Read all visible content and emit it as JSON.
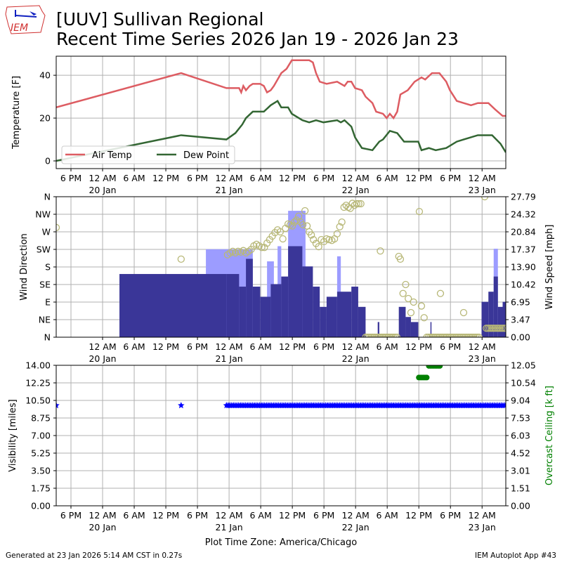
{
  "logo_text": "IEM",
  "title_line1": "[UUV] Sullivan Regional",
  "title_line2": "Recent Time Series 2026 Jan 19 - 2026 Jan 23",
  "footer_left": "Generated at 23 Jan 2026 5:14 AM CST in 0.27s",
  "footer_right": "IEM Autoplot App #43",
  "chart_data": [
    {
      "type": "line",
      "name": "temperature",
      "x_units": "hours since 2026-01-19 00:00 America/Chicago",
      "xlim": [
        15.2,
        100.5
      ],
      "ylim": [
        -3.6,
        48.9
      ],
      "ylabel": "Temperature [F]",
      "yticks": [
        0,
        20,
        40
      ],
      "grid": true,
      "legend": {
        "placement": "lower-left",
        "entries": [
          "Air Temp",
          "Dew Point"
        ]
      },
      "colors": {
        "Air Temp": "#dd5c62",
        "Dew Point": "#336633"
      },
      "series": [
        {
          "name": "Air Temp",
          "points": [
            [
              15.2,
              25
            ],
            [
              38.9,
              41
            ],
            [
              47.5,
              34
            ],
            [
              49.9,
              34
            ],
            [
              50.3,
              32
            ],
            [
              50.7,
              35
            ],
            [
              51.2,
              33
            ],
            [
              51.9,
              35
            ],
            [
              52.5,
              36
            ],
            [
              53.9,
              36
            ],
            [
              54.6,
              35
            ],
            [
              55.2,
              32
            ],
            [
              55.9,
              33
            ],
            [
              56.5,
              35
            ],
            [
              57.9,
              41
            ],
            [
              58.9,
              43
            ],
            [
              59.9,
              47
            ],
            [
              63.2,
              47
            ],
            [
              63.9,
              46
            ],
            [
              64.5,
              41
            ],
            [
              65.2,
              37
            ],
            [
              66.5,
              36
            ],
            [
              68.5,
              37
            ],
            [
              69.9,
              35
            ],
            [
              70.5,
              37
            ],
            [
              71.2,
              37
            ],
            [
              71.9,
              34
            ],
            [
              73.2,
              33
            ],
            [
              73.9,
              30
            ],
            [
              75.2,
              27
            ],
            [
              75.9,
              23
            ],
            [
              77.2,
              22
            ],
            [
              77.9,
              20
            ],
            [
              78.5,
              22
            ],
            [
              79.2,
              20
            ],
            [
              79.9,
              23
            ],
            [
              80.5,
              31
            ],
            [
              81.9,
              33
            ],
            [
              83.2,
              37
            ],
            [
              84.5,
              39
            ],
            [
              85.2,
              38
            ],
            [
              86.5,
              41
            ],
            [
              87.9,
              41
            ],
            [
              89.2,
              37
            ],
            [
              89.9,
              33
            ],
            [
              91.2,
              28
            ],
            [
              92.5,
              27
            ],
            [
              93.9,
              26
            ],
            [
              95.2,
              27
            ],
            [
              97.2,
              27
            ],
            [
              98.5,
              24
            ],
            [
              99.9,
              21
            ],
            [
              100.5,
              21
            ]
          ]
        },
        {
          "name": "Dew Point",
          "points": [
            [
              15.2,
              0
            ],
            [
              38.9,
              12
            ],
            [
              47.5,
              10
            ],
            [
              49.2,
              13
            ],
            [
              50.5,
              17
            ],
            [
              51.2,
              20
            ],
            [
              52.5,
              23
            ],
            [
              54.6,
              23
            ],
            [
              55.9,
              26
            ],
            [
              57.2,
              28
            ],
            [
              57.9,
              25
            ],
            [
              59.2,
              25
            ],
            [
              59.9,
              22
            ],
            [
              61.9,
              19
            ],
            [
              63.2,
              18
            ],
            [
              64.5,
              19
            ],
            [
              65.9,
              18
            ],
            [
              68.5,
              19
            ],
            [
              69.2,
              18
            ],
            [
              69.9,
              19
            ],
            [
              71.2,
              16
            ],
            [
              71.9,
              11
            ],
            [
              73.2,
              6
            ],
            [
              75.2,
              5
            ],
            [
              76.5,
              9
            ],
            [
              77.2,
              10
            ],
            [
              78.5,
              14
            ],
            [
              79.9,
              13
            ],
            [
              81.2,
              9
            ],
            [
              83.9,
              9
            ],
            [
              84.5,
              5
            ],
            [
              85.9,
              6
            ],
            [
              87.2,
              5
            ],
            [
              89.2,
              6
            ],
            [
              91.2,
              9
            ],
            [
              92.5,
              10
            ],
            [
              95.2,
              12
            ],
            [
              97.9,
              12
            ],
            [
              99.5,
              8
            ],
            [
              100.5,
              4
            ]
          ]
        }
      ]
    },
    {
      "type": "bar+scatter",
      "name": "wind",
      "xlim": [
        15.2,
        100.5
      ],
      "ylabel_left": "Wind Direction",
      "ylabel_right": "Wind Speed [mph]",
      "direction_ylim": [
        0,
        360
      ],
      "direction_ticks": [
        "N",
        "NE",
        "E",
        "SE",
        "S",
        "SW",
        "W",
        "NW",
        "N"
      ],
      "speed_ylim": [
        0,
        27.79
      ],
      "speed_ticks": [
        "0.00",
        "3.47",
        "6.95",
        "10.42",
        "13.90",
        "17.37",
        "20.84",
        "24.32",
        "27.79"
      ],
      "colors": {
        "speed": "#3a3698",
        "gust": "#9c9cff",
        "direction": "#b8b878"
      },
      "speed_segments": [
        [
          27.2,
          47.5,
          12.5
        ],
        [
          47.5,
          49.9,
          12.5
        ],
        [
          49.9,
          51.2,
          10.0
        ],
        [
          51.2,
          52.5,
          15.5
        ],
        [
          52.5,
          53.9,
          10.0
        ],
        [
          53.9,
          55.9,
          8.0
        ],
        [
          55.9,
          57.9,
          10.5
        ],
        [
          57.9,
          59.2,
          12
        ],
        [
          59.2,
          61.9,
          18
        ],
        [
          61.9,
          63.9,
          14
        ],
        [
          63.9,
          65.2,
          10
        ],
        [
          65.2,
          66.5,
          6
        ],
        [
          66.5,
          68.5,
          8
        ],
        [
          68.5,
          71.2,
          9
        ],
        [
          71.2,
          72.5,
          10
        ],
        [
          72.5,
          73.9,
          6
        ],
        [
          76.2,
          76.5,
          3
        ],
        [
          80.2,
          81.5,
          6
        ],
        [
          81.5,
          82.5,
          4
        ],
        [
          82.5,
          83.9,
          3
        ],
        [
          86.2,
          86.4,
          3
        ],
        [
          95.9,
          97.2,
          7
        ],
        [
          97.2,
          98.2,
          9
        ],
        [
          98.2,
          99.0,
          12
        ],
        [
          99.0,
          99.9,
          6
        ],
        [
          99.9,
          100.5,
          7
        ]
      ],
      "gust_segments": [
        [
          43.6,
          52.5,
          17.4
        ],
        [
          55.2,
          56.5,
          15
        ],
        [
          57.2,
          57.9,
          18
        ],
        [
          59.2,
          62.5,
          25
        ],
        [
          68.5,
          69.2,
          16
        ],
        [
          98.2,
          99.0,
          17.5
        ]
      ],
      "direction_points": [
        [
          15.2,
          281
        ],
        [
          38.9,
          200
        ],
        [
          47.7,
          211
        ],
        [
          48.2,
          216
        ],
        [
          48.7,
          220
        ],
        [
          49.2,
          216
        ],
        [
          49.7,
          220
        ],
        [
          50.2,
          218
        ],
        [
          50.7,
          222
        ],
        [
          51.2,
          216
        ],
        [
          51.7,
          220
        ],
        [
          52.2,
          225
        ],
        [
          52.7,
          234
        ],
        [
          53.2,
          238
        ],
        [
          53.7,
          234
        ],
        [
          54.2,
          230
        ],
        [
          54.7,
          230
        ],
        [
          55.2,
          241
        ],
        [
          55.7,
          250
        ],
        [
          56.2,
          259
        ],
        [
          56.7,
          268
        ],
        [
          57.2,
          275
        ],
        [
          57.7,
          270
        ],
        [
          58.2,
          252
        ],
        [
          58.7,
          279
        ],
        [
          59.2,
          290
        ],
        [
          59.6,
          288
        ],
        [
          60.0,
          285
        ],
        [
          60.4,
          295
        ],
        [
          60.8,
          300
        ],
        [
          61.2,
          310
        ],
        [
          61.6,
          295
        ],
        [
          62.0,
          288
        ],
        [
          62.4,
          324
        ],
        [
          62.8,
          285
        ],
        [
          63.2,
          270
        ],
        [
          63.6,
          262
        ],
        [
          64.0,
          250
        ],
        [
          64.5,
          240
        ],
        [
          65.0,
          232
        ],
        [
          65.5,
          250
        ],
        [
          66.0,
          245
        ],
        [
          66.5,
          252
        ],
        [
          67.0,
          250
        ],
        [
          67.5,
          248
        ],
        [
          68.0,
          252
        ],
        [
          68.5,
          265
        ],
        [
          69.0,
          283
        ],
        [
          69.4,
          295
        ],
        [
          69.8,
          333
        ],
        [
          70.2,
          338
        ],
        [
          70.6,
          333
        ],
        [
          71.0,
          330
        ],
        [
          71.4,
          343
        ],
        [
          71.8,
          338
        ],
        [
          72.2,
          342
        ],
        [
          72.6,
          342
        ],
        [
          73.0,
          342
        ],
        [
          76.7,
          221
        ],
        [
          80.2,
          207
        ],
        [
          80.5,
          200
        ],
        [
          81.0,
          112
        ],
        [
          81.5,
          135
        ],
        [
          82.0,
          99
        ],
        [
          82.5,
          63
        ],
        [
          83.0,
          90
        ],
        [
          84.1,
          322
        ],
        [
          84.5,
          80
        ],
        [
          85.0,
          50
        ],
        [
          88.1,
          112
        ],
        [
          92.5,
          63
        ],
        [
          96.5,
          360
        ]
      ],
      "calm_ranges": [
        [
          73.9,
          80.0,
          0
        ],
        [
          85.5,
          95.6,
          0
        ],
        [
          96.8,
          100.5,
          23
        ]
      ]
    },
    {
      "type": "scatter",
      "name": "visibility-ceiling",
      "xlim": [
        15.2,
        100.5
      ],
      "ylabel_left": "Visibility [miles]",
      "ylabel_right": "Overcast Ceiling [k ft]",
      "vis_ylim": [
        0,
        14
      ],
      "vis_ticks": [
        "0.00",
        "1.75",
        "3.50",
        "5.25",
        "7.00",
        "8.75",
        "10.50",
        "12.25",
        "14.00"
      ],
      "ceiling_ylim": [
        0,
        12.05
      ],
      "ceiling_ticks": [
        "0.00",
        "1.51",
        "3.01",
        "4.52",
        "6.03",
        "7.53",
        "9.04",
        "10.54",
        "12.05"
      ],
      "colors": {
        "visibility": "#0000ff",
        "ceiling": "#008000"
      },
      "visibility_points": [
        [
          15.2,
          10
        ],
        [
          38.9,
          10
        ]
      ],
      "visibility_regular": {
        "start": 47.5,
        "end": 100.5,
        "step_hours": 0.33,
        "value": 10
      },
      "ceiling_points": [
        [
          84.0,
          11.0
        ],
        [
          84.3,
          11.0
        ],
        [
          84.6,
          11.0
        ],
        [
          84.9,
          11.0
        ],
        [
          85.2,
          11.0
        ],
        [
          85.5,
          11.0
        ],
        [
          85.9,
          12.0
        ],
        [
          86.2,
          12.0
        ],
        [
          86.5,
          12.0
        ],
        [
          86.8,
          12.0
        ],
        [
          87.1,
          12.0
        ],
        [
          87.4,
          12.0
        ],
        [
          87.7,
          12.0
        ],
        [
          88.0,
          12.0
        ]
      ]
    }
  ],
  "time_axis": {
    "ticks_hours": [
      18,
      24,
      30,
      36,
      42,
      48,
      54,
      60,
      66,
      72,
      78,
      84,
      90,
      96
    ],
    "tick_labels": [
      "6 PM",
      "12 AM",
      "6 AM",
      "12 PM",
      "6 PM",
      "12 AM",
      "6 AM",
      "12 PM",
      "6 PM",
      "12 AM",
      "6 AM",
      "12 PM",
      "6 PM",
      "12 AM"
    ],
    "date_labels": [
      [
        24,
        "20 Jan"
      ],
      [
        48,
        "21 Jan"
      ],
      [
        72,
        "22 Jan"
      ],
      [
        96,
        "23 Jan"
      ]
    ],
    "xlabel": "Plot Time Zone: America/Chicago"
  }
}
